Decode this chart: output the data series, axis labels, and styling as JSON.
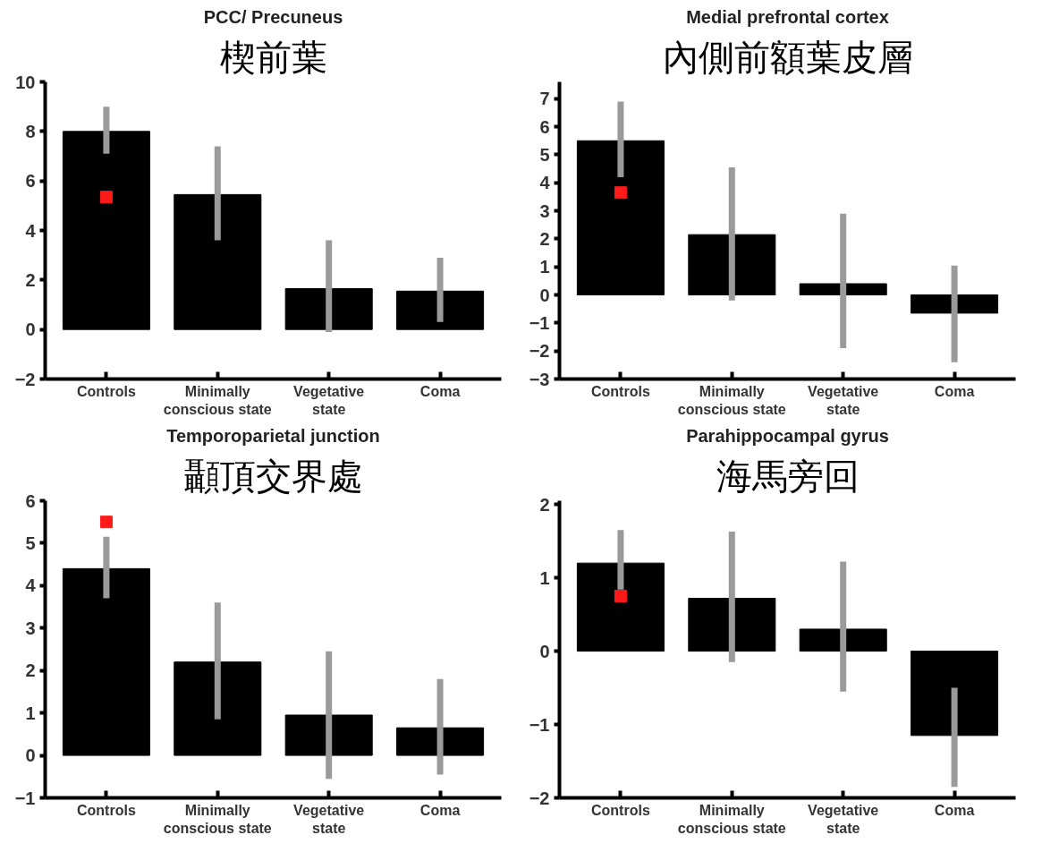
{
  "chart_data": [
    {
      "type": "bar",
      "title": "PCC/ Precuneus",
      "subtitle": "楔前葉",
      "categories": [
        "Controls",
        "Minimally\nconscious state",
        "Vegetative\nstate",
        "Coma"
      ],
      "ylim": [
        -2,
        10
      ],
      "yticks": [
        -2,
        0,
        2,
        4,
        6,
        8,
        10
      ],
      "grid": false,
      "series": [
        {
          "color": "#000000",
          "values": [
            8,
            5.45,
            1.65,
            1.55
          ],
          "errors": [
            [
              7.1,
              9.0
            ],
            [
              3.6,
              7.4
            ],
            [
              -0.1,
              3.6
            ],
            [
              0.3,
              2.9
            ]
          ]
        },
        {
          "type": "scatter",
          "color": "#ff1a1a",
          "marker": "square",
          "x": [
            "Controls"
          ],
          "values": [
            5.35
          ]
        }
      ]
    },
    {
      "type": "bar",
      "title": "Medial prefrontal cortex",
      "subtitle": "內側前額葉皮層",
      "categories": [
        "Controls",
        "Minimally\nconscious state",
        "Vegetative\nstate",
        "Coma"
      ],
      "ylim": [
        -3,
        7.6
      ],
      "yticks": [
        -3,
        -2,
        -1,
        0,
        1,
        2,
        3,
        4,
        5,
        6,
        7
      ],
      "grid": false,
      "series": [
        {
          "color": "#000000",
          "values": [
            5.5,
            2.15,
            0.4,
            -0.65
          ],
          "errors": [
            [
              4.2,
              6.9
            ],
            [
              -0.2,
              4.55
            ],
            [
              -1.9,
              2.9
            ],
            [
              -2.4,
              1.05
            ]
          ]
        },
        {
          "type": "scatter",
          "color": "#ff1a1a",
          "marker": "square",
          "x": [
            "Controls"
          ],
          "values": [
            3.65
          ]
        }
      ]
    },
    {
      "type": "bar",
      "title": "Temporoparietal junction",
      "subtitle": "顳頂交界處",
      "categories": [
        "Controls",
        "Minimally\nconscious state",
        "Vegetative\nstate",
        "Coma"
      ],
      "ylim": [
        -1,
        6
      ],
      "yticks": [
        -1,
        0,
        1,
        2,
        3,
        4,
        5,
        6
      ],
      "grid": false,
      "series": [
        {
          "color": "#000000",
          "values": [
            4.4,
            2.2,
            0.95,
            0.65
          ],
          "errors": [
            [
              3.7,
              5.15
            ],
            [
              0.85,
              3.6
            ],
            [
              -0.55,
              2.45
            ],
            [
              -0.45,
              1.8
            ]
          ]
        },
        {
          "type": "scatter",
          "color": "#ff1a1a",
          "marker": "square",
          "x": [
            "Controls"
          ],
          "values": [
            5.5
          ]
        }
      ]
    },
    {
      "type": "bar",
      "title": "Parahippocampal gyrus",
      "subtitle": "海馬旁回",
      "categories": [
        "Controls",
        "Minimally\nconscious state",
        "Vegetative\nstate",
        "Coma"
      ],
      "ylim": [
        -2,
        2.05
      ],
      "yticks": [
        -2,
        -1,
        0,
        1,
        2
      ],
      "grid": false,
      "series": [
        {
          "color": "#000000",
          "values": [
            1.2,
            0.72,
            0.3,
            -1.15
          ],
          "errors": [
            [
              0.84,
              1.65
            ],
            [
              -0.15,
              1.63
            ],
            [
              -0.55,
              1.22
            ],
            [
              -1.85,
              -0.5
            ]
          ]
        },
        {
          "type": "scatter",
          "color": "#ff1a1a",
          "marker": "square",
          "x": [
            "Controls"
          ],
          "values": [
            0.75
          ]
        }
      ]
    }
  ]
}
